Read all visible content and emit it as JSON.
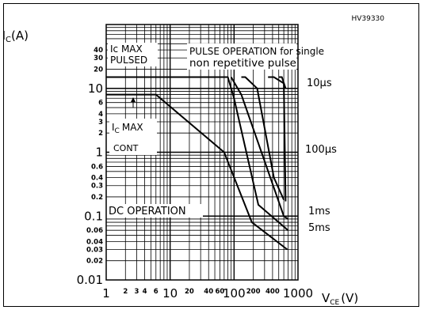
{
  "chart_data": {
    "type": "line",
    "code": "HV39330",
    "xlabel": "V",
    "xlabel_sub": "CE",
    "xlabel_unit": "(V)",
    "ylabel": "I",
    "ylabel_sub": "C",
    "ylabel_unit": "(A)",
    "xscale": "log",
    "yscale": "log",
    "xlim": [
      1,
      1000
    ],
    "ylim": [
      0.01,
      100
    ],
    "grid": true,
    "x_ticks": [
      {
        "v": 1,
        "label": "1",
        "size": "big"
      },
      {
        "v": 2,
        "label": "2",
        "size": "small"
      },
      {
        "v": 3,
        "label": "3",
        "size": "small"
      },
      {
        "v": 4,
        "label": "4",
        "size": "small"
      },
      {
        "v": 6,
        "label": "6",
        "size": "small"
      },
      {
        "v": 10,
        "label": "10",
        "size": "big"
      },
      {
        "v": 20,
        "label": "20",
        "size": "small"
      },
      {
        "v": 40,
        "label": "40",
        "size": "small"
      },
      {
        "v": 60,
        "label": "60",
        "size": "small"
      },
      {
        "v": 100,
        "label": "100",
        "size": "big"
      },
      {
        "v": 200,
        "label": "200",
        "size": "small"
      },
      {
        "v": 400,
        "label": "400",
        "size": "small"
      },
      {
        "v": 1000,
        "label": "1000",
        "size": "big"
      }
    ],
    "y_ticks": [
      {
        "v": 0.01,
        "label": "0.01",
        "size": "big"
      },
      {
        "v": 0.02,
        "label": "0.02",
        "size": "small"
      },
      {
        "v": 0.03,
        "label": "0.03",
        "size": "small"
      },
      {
        "v": 0.04,
        "label": "0.04",
        "size": "small"
      },
      {
        "v": 0.06,
        "label": "0.06",
        "size": "small"
      },
      {
        "v": 0.1,
        "label": "0.1",
        "size": "big"
      },
      {
        "v": 0.2,
        "label": "0.2",
        "size": "small"
      },
      {
        "v": 0.3,
        "label": "0.3",
        "size": "small"
      },
      {
        "v": 0.4,
        "label": "0.4",
        "size": "small"
      },
      {
        "v": 0.6,
        "label": "0.6",
        "size": "small"
      },
      {
        "v": 1,
        "label": "1",
        "size": "big"
      },
      {
        "v": 2,
        "label": "2",
        "size": "small"
      },
      {
        "v": 3,
        "label": "3",
        "size": "small"
      },
      {
        "v": 4,
        "label": "4",
        "size": "small"
      },
      {
        "v": 6,
        "label": "6",
        "size": "small"
      },
      {
        "v": 10,
        "label": "10",
        "size": "big"
      },
      {
        "v": 20,
        "label": "20",
        "size": "small"
      },
      {
        "v": 30,
        "label": "30",
        "size": "small"
      },
      {
        "v": 40,
        "label": "40",
        "size": "small"
      }
    ],
    "series": [
      {
        "points": [
          [
            1,
            8
          ],
          [
            6,
            8
          ],
          [
            70,
            1
          ],
          [
            190,
            0.08
          ],
          [
            680,
            0.03
          ]
        ]
      },
      {
        "points": [
          [
            1,
            15
          ],
          [
            80,
            15
          ],
          [
            100,
            7
          ],
          [
            240,
            0.15
          ],
          [
            700,
            0.06
          ]
        ]
      },
      {
        "points": [
          [
            90,
            15
          ],
          [
            130,
            8
          ],
          [
            600,
            0.1
          ],
          [
            700,
            0.09
          ]
        ]
      },
      {
        "points": [
          [
            130,
            15
          ],
          [
            150,
            15
          ],
          [
            230,
            10
          ],
          [
            420,
            0.4
          ],
          [
            600,
            0.18
          ]
        ]
      },
      {
        "points": [
          [
            340,
            15
          ],
          [
            420,
            15
          ],
          [
            600,
            12
          ],
          [
            640,
            0.17
          ]
        ]
      },
      {
        "points": [
          [
            500,
            15
          ],
          [
            560,
            15
          ],
          [
            640,
            10
          ]
        ]
      }
    ],
    "annotations": {
      "ic_max_pulsed_1": "Ic  MAX",
      "ic_max_pulsed_2": "PULSED",
      "pulse_1": "PULSE OPERATION  for single",
      "pulse_2": "non  repetitive  pulse",
      "ic_max_cont_1": "I",
      "ic_max_cont_1_sub": "C",
      "ic_max_cont_1_rest": "MAX",
      "ic_max_cont_2": "CONT",
      "dc_operation": "DC  OPERATION",
      "t10us": "10μs",
      "t100us": "100μs",
      "t1ms": "1ms",
      "t5ms": "5ms"
    },
    "colors": {
      "line": "#000000",
      "grid": "#000000",
      "background": "#ffffff"
    }
  }
}
